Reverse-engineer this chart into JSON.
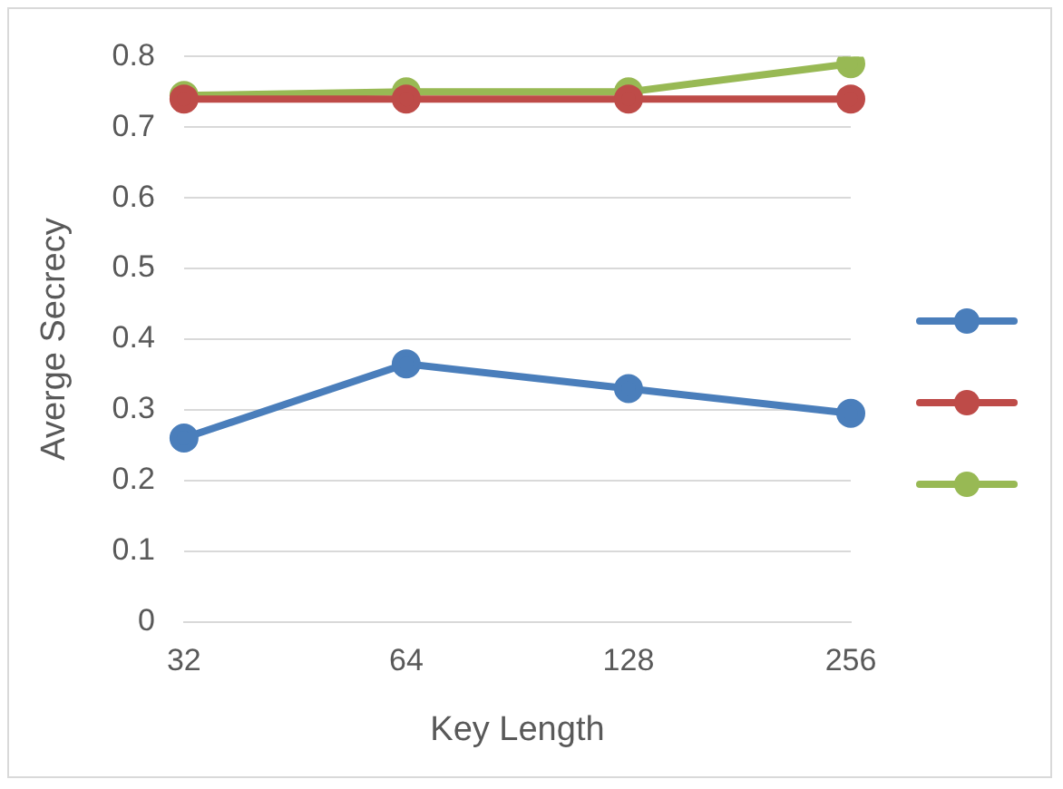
{
  "chart_data": {
    "type": "line",
    "xlabel": "Key Length",
    "ylabel": "Averge Secrecy",
    "categories": [
      "32",
      "64",
      "128",
      "256"
    ],
    "series": [
      {
        "color": "#4a7ebb",
        "values": [
          0.26,
          0.365,
          0.33,
          0.295
        ]
      },
      {
        "color": "#be4b48",
        "values": [
          0.74,
          0.74,
          0.74,
          0.74
        ]
      },
      {
        "color": "#98b954",
        "values": [
          0.745,
          0.75,
          0.75,
          0.79
        ]
      }
    ],
    "ylim": [
      0,
      0.8
    ],
    "yticks": [
      0,
      0.1,
      0.2,
      0.3,
      0.4,
      0.5,
      0.6,
      0.7,
      0.8
    ],
    "grid": "y",
    "marker": "circle",
    "line_style": "solid"
  }
}
